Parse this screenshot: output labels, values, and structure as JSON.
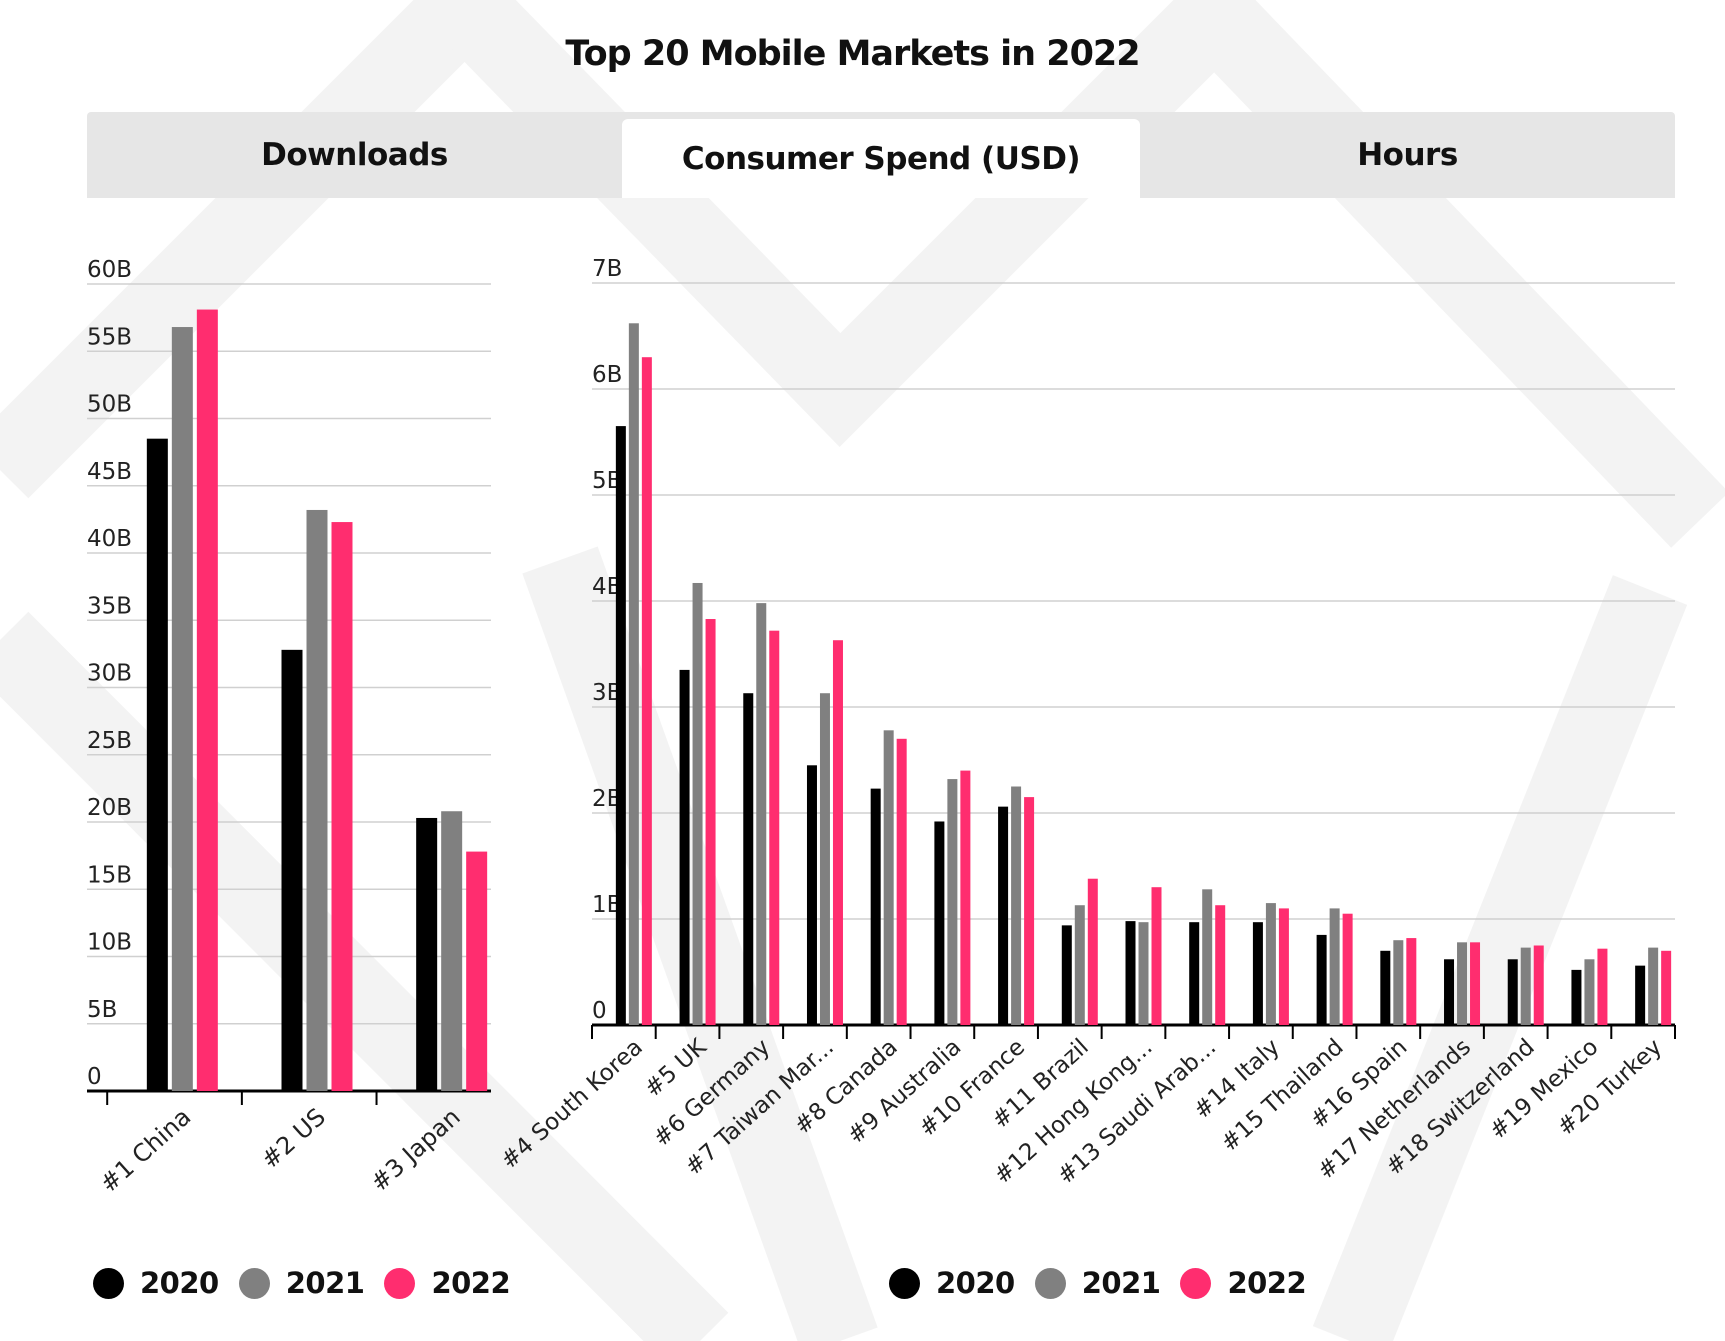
{
  "title": "Top 20 Mobile Markets in 2022",
  "tabs": [
    {
      "label": "Downloads",
      "active": false
    },
    {
      "label": "Consumer Spend (USD)",
      "active": true
    },
    {
      "label": "Hours",
      "active": false
    }
  ],
  "colors": {
    "2020": "#000000",
    "2021": "#808080",
    "2022": "#ff2d6f",
    "grid": "#d0d0d0",
    "watermark": "#f3f3f3"
  },
  "legend": [
    "2020",
    "2021",
    "2022"
  ],
  "chart_data": [
    {
      "type": "bar",
      "name": "downloads",
      "title": "",
      "xlabel": "",
      "ylabel": "",
      "ylim": [
        0,
        60
      ],
      "yticks": [
        0,
        5,
        10,
        15,
        20,
        25,
        30,
        35,
        40,
        45,
        50,
        55,
        60
      ],
      "ytick_labels": [
        "0",
        "5B",
        "10B",
        "15B",
        "20B",
        "25B",
        "30B",
        "35B",
        "40B",
        "45B",
        "50B",
        "55B",
        "60B"
      ],
      "categories": [
        "#1 China",
        "#2 US",
        "#3 Japan"
      ],
      "series": [
        {
          "name": "2020",
          "values": [
            48.5,
            32.8,
            20.3
          ]
        },
        {
          "name": "2021",
          "values": [
            56.8,
            43.2,
            20.8
          ]
        },
        {
          "name": "2022",
          "values": [
            58.1,
            42.3,
            17.8
          ]
        }
      ],
      "grid": true,
      "legend_position": "bottom"
    },
    {
      "type": "bar",
      "name": "consumer-spend",
      "title": "",
      "xlabel": "",
      "ylabel": "",
      "ylim": [
        0,
        7
      ],
      "yticks": [
        0,
        1,
        2,
        3,
        4,
        5,
        6,
        7
      ],
      "ytick_labels": [
        "0",
        "1B",
        "2B",
        "3B",
        "4B",
        "5B",
        "6B",
        "7B"
      ],
      "categories": [
        "#4 South Korea",
        "#5 UK",
        "#6 Germany",
        "#7 Taiwan Mar...",
        "#8 Canada",
        "#9 Australia",
        "#10 France",
        "#11 Brazil",
        "#12 Hong Kong...",
        "#13 Saudi Arab...",
        "#14 Italy",
        "#15 Thailand",
        "#16 Spain",
        "#17 Netherlands",
        "#18 Switzerland",
        "#19 Mexico",
        "#20 Turkey"
      ],
      "series": [
        {
          "name": "2020",
          "values": [
            5.65,
            3.35,
            3.13,
            2.45,
            2.23,
            1.92,
            2.06,
            0.94,
            0.98,
            0.97,
            0.97,
            0.85,
            0.7,
            0.62,
            0.62,
            0.52,
            0.56
          ]
        },
        {
          "name": "2021",
          "values": [
            6.62,
            4.17,
            3.98,
            3.13,
            2.78,
            2.32,
            2.25,
            1.13,
            0.97,
            1.28,
            1.15,
            1.1,
            0.8,
            0.78,
            0.73,
            0.62,
            0.73
          ]
        },
        {
          "name": "2022",
          "values": [
            6.3,
            3.83,
            3.72,
            3.63,
            2.7,
            2.4,
            2.15,
            1.38,
            1.3,
            1.13,
            1.1,
            1.05,
            0.82,
            0.78,
            0.75,
            0.72,
            0.7
          ]
        }
      ],
      "grid": true,
      "legend_position": "bottom"
    }
  ]
}
